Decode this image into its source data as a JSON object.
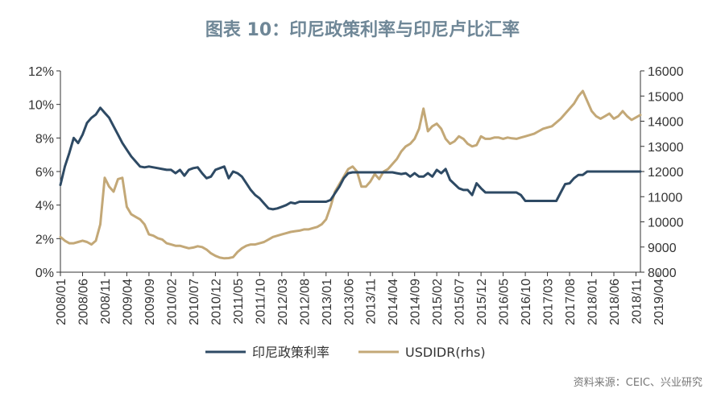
{
  "chart_data": {
    "type": "line",
    "title": "图表 10：印尼政策利率与印尼卢比汇率",
    "source": "资料来源：CEIC、兴业研究",
    "x_labels": [
      "2008/01",
      "2008/06",
      "2008/11",
      "2009/04",
      "2009/09",
      "2010/02",
      "2010/07",
      "2010/12",
      "2011/05",
      "2011/10",
      "2012/03",
      "2012/08",
      "2013/01",
      "2013/06",
      "2013/11",
      "2014/04",
      "2014/09",
      "2015/02",
      "2015/07",
      "2015/12",
      "2016/05",
      "2016/10",
      "2017/03",
      "2017/08",
      "2018/01",
      "2018/06",
      "2018/11",
      "2019/04"
    ],
    "y_left": {
      "min": 0,
      "max": 12,
      "ticks": [
        0,
        2,
        4,
        6,
        8,
        10,
        12
      ],
      "tick_labels": [
        "0%",
        "2%",
        "4%",
        "6%",
        "8%",
        "10%",
        "12%"
      ]
    },
    "y_right": {
      "min": 8000,
      "max": 16000,
      "ticks": [
        8000,
        9000,
        10000,
        11000,
        12000,
        13000,
        14000,
        15000,
        16000
      ],
      "tick_labels": [
        "8000",
        "9000",
        "10000",
        "11000",
        "12000",
        "13000",
        "14000",
        "15000",
        "16000"
      ]
    },
    "series": [
      {
        "name": "印尼政策利率",
        "axis": "left",
        "color": "#2e4a64",
        "points": [
          [
            0,
            5.2
          ],
          [
            1,
            6.3
          ],
          [
            2,
            7.1
          ],
          [
            3,
            8.0
          ],
          [
            4,
            7.7
          ],
          [
            5,
            8.2
          ],
          [
            6,
            8.9
          ],
          [
            7,
            9.2
          ],
          [
            8,
            9.4
          ],
          [
            9,
            9.8
          ],
          [
            10,
            9.5
          ],
          [
            11,
            9.2
          ],
          [
            12,
            8.7
          ],
          [
            13,
            8.2
          ],
          [
            14,
            7.7
          ],
          [
            15,
            7.3
          ],
          [
            16,
            6.9
          ],
          [
            17,
            6.6
          ],
          [
            18,
            6.3
          ],
          [
            19,
            6.25
          ],
          [
            20,
            6.3
          ],
          [
            21,
            6.25
          ],
          [
            22,
            6.2
          ],
          [
            23,
            6.15
          ],
          [
            24,
            6.1
          ],
          [
            25,
            6.1
          ],
          [
            26,
            5.9
          ],
          [
            27,
            6.1
          ],
          [
            28,
            5.75
          ],
          [
            29,
            6.1
          ],
          [
            30,
            6.2
          ],
          [
            31,
            6.25
          ],
          [
            32,
            5.9
          ],
          [
            33,
            5.6
          ],
          [
            34,
            5.7
          ],
          [
            35,
            6.1
          ],
          [
            36,
            6.2
          ],
          [
            37,
            6.3
          ],
          [
            38,
            5.6
          ],
          [
            39,
            6.0
          ],
          [
            40,
            5.9
          ],
          [
            41,
            5.7
          ],
          [
            42,
            5.3
          ],
          [
            43,
            4.9
          ],
          [
            44,
            4.6
          ],
          [
            45,
            4.4
          ],
          [
            46,
            4.1
          ],
          [
            47,
            3.8
          ],
          [
            48,
            3.75
          ],
          [
            49,
            3.8
          ],
          [
            50,
            3.9
          ],
          [
            51,
            4.0
          ],
          [
            52,
            4.15
          ],
          [
            53,
            4.1
          ],
          [
            54,
            4.2
          ],
          [
            55,
            4.2
          ],
          [
            56,
            4.2
          ],
          [
            57,
            4.2
          ],
          [
            58,
            4.2
          ],
          [
            59,
            4.2
          ],
          [
            60,
            4.2
          ],
          [
            61,
            4.3
          ],
          [
            62,
            4.7
          ],
          [
            63,
            5.1
          ],
          [
            64,
            5.6
          ],
          [
            65,
            5.9
          ],
          [
            66,
            5.95
          ],
          [
            67,
            5.95
          ],
          [
            68,
            5.95
          ],
          [
            69,
            5.95
          ],
          [
            70,
            5.95
          ],
          [
            71,
            5.95
          ],
          [
            72,
            5.95
          ],
          [
            73,
            5.95
          ],
          [
            74,
            5.95
          ],
          [
            75,
            5.95
          ],
          [
            76,
            5.9
          ],
          [
            77,
            5.85
          ],
          [
            78,
            5.9
          ],
          [
            79,
            5.7
          ],
          [
            80,
            5.9
          ],
          [
            81,
            5.7
          ],
          [
            82,
            5.7
          ],
          [
            83,
            5.9
          ],
          [
            84,
            5.7
          ],
          [
            85,
            6.1
          ],
          [
            86,
            5.9
          ],
          [
            87,
            6.15
          ],
          [
            88,
            5.5
          ],
          [
            89,
            5.25
          ],
          [
            90,
            5.0
          ],
          [
            91,
            4.9
          ],
          [
            92,
            4.9
          ],
          [
            93,
            4.6
          ],
          [
            94,
            5.3
          ],
          [
            95,
            5.0
          ],
          [
            96,
            4.75
          ],
          [
            97,
            4.75
          ],
          [
            98,
            4.75
          ],
          [
            99,
            4.75
          ],
          [
            100,
            4.75
          ],
          [
            101,
            4.75
          ],
          [
            102,
            4.75
          ],
          [
            103,
            4.75
          ],
          [
            104,
            4.6
          ],
          [
            105,
            4.25
          ],
          [
            106,
            4.25
          ],
          [
            107,
            4.25
          ],
          [
            108,
            4.25
          ],
          [
            109,
            4.25
          ],
          [
            110,
            4.25
          ],
          [
            111,
            4.25
          ],
          [
            112,
            4.25
          ],
          [
            113,
            4.75
          ],
          [
            114,
            5.25
          ],
          [
            115,
            5.3
          ],
          [
            116,
            5.6
          ],
          [
            117,
            5.8
          ],
          [
            118,
            5.8
          ],
          [
            119,
            6.0
          ],
          [
            120,
            6.0
          ],
          [
            121,
            6.0
          ],
          [
            122,
            6.0
          ],
          [
            123,
            6.0
          ],
          [
            124,
            6.0
          ],
          [
            125,
            6.0
          ],
          [
            126,
            6.0
          ],
          [
            127,
            6.0
          ],
          [
            128,
            6.0
          ],
          [
            129,
            6.0
          ],
          [
            130,
            6.0
          ],
          [
            131,
            6.0
          ]
        ]
      },
      {
        "name": "USDIDR(rhs)",
        "axis": "right",
        "color": "#c3a877",
        "points": [
          [
            0,
            9400
          ],
          [
            1,
            9250
          ],
          [
            2,
            9150
          ],
          [
            3,
            9150
          ],
          [
            4,
            9200
          ],
          [
            5,
            9250
          ],
          [
            6,
            9200
          ],
          [
            7,
            9100
          ],
          [
            8,
            9250
          ],
          [
            9,
            9900
          ],
          [
            10,
            11750
          ],
          [
            11,
            11400
          ],
          [
            12,
            11200
          ],
          [
            13,
            11700
          ],
          [
            14,
            11750
          ],
          [
            15,
            10600
          ],
          [
            16,
            10300
          ],
          [
            17,
            10200
          ],
          [
            18,
            10100
          ],
          [
            19,
            9900
          ],
          [
            20,
            9500
          ],
          [
            21,
            9450
          ],
          [
            22,
            9350
          ],
          [
            23,
            9300
          ],
          [
            24,
            9150
          ],
          [
            25,
            9100
          ],
          [
            26,
            9050
          ],
          [
            27,
            9050
          ],
          [
            28,
            9000
          ],
          [
            29,
            8950
          ],
          [
            30,
            8980
          ],
          [
            31,
            9030
          ],
          [
            32,
            9000
          ],
          [
            33,
            8900
          ],
          [
            34,
            8750
          ],
          [
            35,
            8650
          ],
          [
            36,
            8580
          ],
          [
            37,
            8550
          ],
          [
            38,
            8560
          ],
          [
            39,
            8600
          ],
          [
            40,
            8800
          ],
          [
            41,
            8950
          ],
          [
            42,
            9050
          ],
          [
            43,
            9100
          ],
          [
            44,
            9100
          ],
          [
            45,
            9150
          ],
          [
            46,
            9200
          ],
          [
            47,
            9300
          ],
          [
            48,
            9400
          ],
          [
            49,
            9450
          ],
          [
            50,
            9500
          ],
          [
            51,
            9550
          ],
          [
            52,
            9600
          ],
          [
            53,
            9630
          ],
          [
            54,
            9650
          ],
          [
            55,
            9700
          ],
          [
            56,
            9700
          ],
          [
            57,
            9750
          ],
          [
            58,
            9800
          ],
          [
            59,
            9900
          ],
          [
            60,
            10100
          ],
          [
            61,
            10600
          ],
          [
            62,
            11200
          ],
          [
            63,
            11500
          ],
          [
            64,
            11800
          ],
          [
            65,
            12100
          ],
          [
            66,
            12200
          ],
          [
            67,
            12000
          ],
          [
            68,
            11400
          ],
          [
            69,
            11400
          ],
          [
            70,
            11600
          ],
          [
            71,
            11900
          ],
          [
            72,
            11700
          ],
          [
            73,
            12000
          ],
          [
            74,
            12100
          ],
          [
            75,
            12300
          ],
          [
            76,
            12500
          ],
          [
            77,
            12800
          ],
          [
            78,
            13000
          ],
          [
            79,
            13100
          ],
          [
            80,
            13300
          ],
          [
            81,
            13700
          ],
          [
            82,
            14500
          ],
          [
            83,
            13600
          ],
          [
            84,
            13800
          ],
          [
            85,
            13900
          ],
          [
            86,
            13700
          ],
          [
            87,
            13300
          ],
          [
            88,
            13100
          ],
          [
            89,
            13200
          ],
          [
            90,
            13400
          ],
          [
            91,
            13300
          ],
          [
            92,
            13100
          ],
          [
            93,
            13000
          ],
          [
            94,
            13050
          ],
          [
            95,
            13400
          ],
          [
            96,
            13300
          ],
          [
            97,
            13300
          ],
          [
            98,
            13350
          ],
          [
            99,
            13350
          ],
          [
            100,
            13300
          ],
          [
            101,
            13350
          ],
          [
            102,
            13320
          ],
          [
            103,
            13300
          ],
          [
            104,
            13350
          ],
          [
            105,
            13400
          ],
          [
            106,
            13450
          ],
          [
            107,
            13500
          ],
          [
            108,
            13600
          ],
          [
            109,
            13700
          ],
          [
            110,
            13750
          ],
          [
            111,
            13800
          ],
          [
            112,
            13950
          ],
          [
            113,
            14100
          ],
          [
            114,
            14300
          ],
          [
            115,
            14500
          ],
          [
            116,
            14700
          ],
          [
            117,
            15000
          ],
          [
            118,
            15200
          ],
          [
            119,
            14800
          ],
          [
            120,
            14400
          ],
          [
            121,
            14200
          ],
          [
            122,
            14100
          ],
          [
            123,
            14200
          ],
          [
            124,
            14300
          ],
          [
            125,
            14100
          ],
          [
            126,
            14200
          ],
          [
            127,
            14400
          ],
          [
            128,
            14200
          ],
          [
            129,
            14050
          ],
          [
            130,
            14150
          ],
          [
            131,
            14250
          ]
        ]
      }
    ]
  }
}
